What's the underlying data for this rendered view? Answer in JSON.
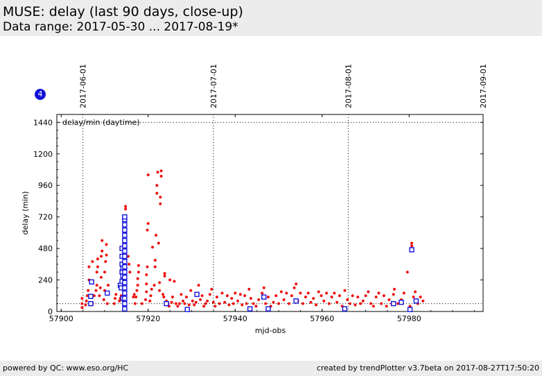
{
  "header": {
    "title": "MUSE: delay (last 90 days, close-up)",
    "subtitle": "Data range: 2017-05-30 ... 2017-08-19*"
  },
  "badge": "4",
  "footer": {
    "left": "powered by QC: www.eso.org/HC",
    "right": "created by trendPlotter v3.7beta on 2017-08-27T17:50:20"
  },
  "colors": {
    "points": "#ee1111",
    "squares": "#1010dd",
    "header_bg": "#ececec"
  },
  "chart_data": {
    "type": "scatter",
    "annotation": "delay/min (daytime)",
    "xlabel": "mjd-obs",
    "ylabel": "delay (min)",
    "xlim": [
      57899,
      57997
    ],
    "ylim": [
      0,
      1500
    ],
    "x_ticks": [
      57900,
      57920,
      57940,
      57960,
      57980
    ],
    "y_ticks": [
      0,
      240,
      480,
      720,
      960,
      1200,
      1440
    ],
    "date_markers": [
      {
        "label": "2017-06-01",
        "x": 57905
      },
      {
        "label": "2017-07-01",
        "x": 57935
      },
      {
        "label": "2017-08-01",
        "x": 57966
      },
      {
        "label": "2017-09-01",
        "x": 57997
      }
    ],
    "grid_dotted_y": [
      1440,
      60
    ],
    "series": [
      {
        "marker": "dot",
        "points": [
          [
            57904.8,
            30
          ],
          [
            57904.8,
            60
          ],
          [
            57904.8,
            100
          ],
          [
            57905.6,
            50
          ],
          [
            57905.8,
            80
          ],
          [
            57906,
            120
          ],
          [
            57906.2,
            160
          ],
          [
            57906.4,
            240
          ],
          [
            57906.4,
            340
          ],
          [
            57907.2,
            60
          ],
          [
            57907.2,
            380
          ],
          [
            57907.6,
            120
          ],
          [
            57908,
            160
          ],
          [
            57908.2,
            200
          ],
          [
            57908.2,
            300
          ],
          [
            57908.4,
            340
          ],
          [
            57908.4,
            400
          ],
          [
            57908.8,
            120
          ],
          [
            57909,
            180
          ],
          [
            57909.2,
            260
          ],
          [
            57909.2,
            420
          ],
          [
            57909.4,
            460
          ],
          [
            57909.4,
            540
          ],
          [
            57909.8,
            90
          ],
          [
            57910,
            160
          ],
          [
            57910,
            300
          ],
          [
            57910.2,
            380
          ],
          [
            57910.4,
            430
          ],
          [
            57910.4,
            510
          ],
          [
            57910.6,
            60
          ],
          [
            57910.8,
            200
          ],
          [
            57912.2,
            60
          ],
          [
            57912.4,
            100
          ],
          [
            57912.6,
            130
          ],
          [
            57913.4,
            80
          ],
          [
            57913.6,
            100
          ],
          [
            57913.8,
            120
          ],
          [
            57914.2,
            90
          ],
          [
            57914.8,
            480
          ],
          [
            57914.8,
            540
          ],
          [
            57914.8,
            600
          ],
          [
            57914.8,
            660
          ],
          [
            57914.8,
            720
          ],
          [
            57914.8,
            780
          ],
          [
            57914.8,
            800
          ],
          [
            57915.4,
            420
          ],
          [
            57915.6,
            360
          ],
          [
            57915.8,
            300
          ],
          [
            57916.6,
            110
          ],
          [
            57916.8,
            130
          ],
          [
            57917,
            60
          ],
          [
            57917.2,
            110
          ],
          [
            57917.4,
            160
          ],
          [
            57917.6,
            200
          ],
          [
            57917.6,
            250
          ],
          [
            57917.8,
            300
          ],
          [
            57917.8,
            350
          ],
          [
            57918.6,
            60
          ],
          [
            57919.4,
            90
          ],
          [
            57919.6,
            150
          ],
          [
            57919.6,
            210
          ],
          [
            57919.6,
            280
          ],
          [
            57919.8,
            340
          ],
          [
            57919.8,
            620
          ],
          [
            57920,
            670
          ],
          [
            57920,
            1040
          ],
          [
            57920.4,
            80
          ],
          [
            57920.6,
            120
          ],
          [
            57920.8,
            170
          ],
          [
            57921,
            490
          ],
          [
            57921.4,
            200
          ],
          [
            57921.6,
            340
          ],
          [
            57921.6,
            390
          ],
          [
            57921.8,
            580
          ],
          [
            57922,
            900
          ],
          [
            57922,
            960
          ],
          [
            57922.2,
            1060
          ],
          [
            57922.4,
            520
          ],
          [
            57922.6,
            160
          ],
          [
            57922.6,
            220
          ],
          [
            57922.8,
            820
          ],
          [
            57922.8,
            870
          ],
          [
            57923,
            1030
          ],
          [
            57923,
            1070
          ],
          [
            57923.4,
            130
          ],
          [
            57923.6,
            110
          ],
          [
            57923.8,
            290
          ],
          [
            57923.8,
            270
          ],
          [
            57924.2,
            80
          ],
          [
            57924.6,
            60
          ],
          [
            57924.8,
            40
          ],
          [
            57925,
            240
          ],
          [
            57925.4,
            70
          ],
          [
            57925.6,
            110
          ],
          [
            57926,
            230
          ],
          [
            57926.4,
            60
          ],
          [
            57926.8,
            40
          ],
          [
            57927.2,
            60
          ],
          [
            57927.6,
            130
          ],
          [
            57928,
            80
          ],
          [
            57928.4,
            60
          ],
          [
            57928.8,
            110
          ],
          [
            57929.4,
            50
          ],
          [
            57929.8,
            160
          ],
          [
            57930.2,
            80
          ],
          [
            57930.6,
            50
          ],
          [
            57931,
            70
          ],
          [
            57931.6,
            200
          ],
          [
            57932,
            90
          ],
          [
            57932.4,
            120
          ],
          [
            57932.8,
            40
          ],
          [
            57933.2,
            60
          ],
          [
            57933.6,
            80
          ],
          [
            57934.2,
            130
          ],
          [
            57934.6,
            170
          ],
          [
            57935,
            70
          ],
          [
            57935.4,
            40
          ],
          [
            57935.8,
            110
          ],
          [
            57936.4,
            60
          ],
          [
            57937,
            140
          ],
          [
            57937.6,
            70
          ],
          [
            57938.2,
            120
          ],
          [
            57938.6,
            50
          ],
          [
            57939.2,
            100
          ],
          [
            57939.6,
            60
          ],
          [
            57940,
            140
          ],
          [
            57940.6,
            80
          ],
          [
            57941.2,
            130
          ],
          [
            57941.6,
            50
          ],
          [
            57942.2,
            120
          ],
          [
            57942.6,
            60
          ],
          [
            57943.2,
            170
          ],
          [
            57943.6,
            100
          ],
          [
            57944.2,
            60
          ],
          [
            57944.8,
            40
          ],
          [
            57945.4,
            90
          ],
          [
            57946.2,
            140
          ],
          [
            57946.6,
            180
          ],
          [
            57947,
            60
          ],
          [
            57947.6,
            110
          ],
          [
            57948.2,
            40
          ],
          [
            57948.8,
            70
          ],
          [
            57949.4,
            120
          ],
          [
            57950,
            60
          ],
          [
            57950.6,
            150
          ],
          [
            57951.2,
            90
          ],
          [
            57951.8,
            140
          ],
          [
            57952.4,
            60
          ],
          [
            57953,
            120
          ],
          [
            57953.6,
            180
          ],
          [
            57954,
            210
          ],
          [
            57954.4,
            80
          ],
          [
            57955,
            140
          ],
          [
            57955.6,
            60
          ],
          [
            57956.2,
            110
          ],
          [
            57956.8,
            140
          ],
          [
            57957.4,
            70
          ],
          [
            57958,
            100
          ],
          [
            57958.6,
            50
          ],
          [
            57959.2,
            150
          ],
          [
            57959.8,
            120
          ],
          [
            57960.4,
            80
          ],
          [
            57961,
            140
          ],
          [
            57961.6,
            60
          ],
          [
            57962.2,
            110
          ],
          [
            57962.8,
            140
          ],
          [
            57963.4,
            70
          ],
          [
            57964,
            120
          ],
          [
            57964.6,
            40
          ],
          [
            57965.2,
            160
          ],
          [
            57965.8,
            90
          ],
          [
            57966.4,
            60
          ],
          [
            57967,
            120
          ],
          [
            57967.6,
            50
          ],
          [
            57968.2,
            110
          ],
          [
            57968.8,
            60
          ],
          [
            57969.4,
            80
          ],
          [
            57970,
            120
          ],
          [
            57970.6,
            150
          ],
          [
            57971.2,
            60
          ],
          [
            57971.8,
            40
          ],
          [
            57972.4,
            110
          ],
          [
            57973,
            140
          ],
          [
            57973.6,
            60
          ],
          [
            57974.2,
            120
          ],
          [
            57974.8,
            40
          ],
          [
            57975.4,
            90
          ],
          [
            57976,
            60
          ],
          [
            57976.4,
            130
          ],
          [
            57976.6,
            170
          ],
          [
            57977.4,
            60
          ],
          [
            57978.2,
            90
          ],
          [
            57978.8,
            140
          ],
          [
            57979.6,
            300
          ],
          [
            57980.2,
            40
          ],
          [
            57980.6,
            500
          ],
          [
            57980.6,
            520
          ],
          [
            57981,
            110
          ],
          [
            57981.4,
            150
          ],
          [
            57982,
            60
          ],
          [
            57982.6,
            110
          ],
          [
            57983.2,
            80
          ]
        ]
      },
      {
        "marker": "square",
        "points": [
          [
            57906.8,
            60
          ],
          [
            57906.8,
            115
          ],
          [
            57907,
            225
          ],
          [
            57910.6,
            140
          ],
          [
            57913.6,
            200
          ],
          [
            57913.8,
            180
          ],
          [
            57914,
            230
          ],
          [
            57914,
            300
          ],
          [
            57914,
            360
          ],
          [
            57914,
            420
          ],
          [
            57914,
            480
          ],
          [
            57914.2,
            100
          ],
          [
            57914.2,
            270
          ],
          [
            57914.2,
            330
          ],
          [
            57914.6,
            20
          ],
          [
            57914.6,
            60
          ],
          [
            57914.6,
            100
          ],
          [
            57914.6,
            140
          ],
          [
            57914.6,
            180
          ],
          [
            57914.6,
            220
          ],
          [
            57914.6,
            260
          ],
          [
            57914.6,
            300
          ],
          [
            57914.6,
            340
          ],
          [
            57914.6,
            380
          ],
          [
            57914.6,
            420
          ],
          [
            57914.6,
            460
          ],
          [
            57914.6,
            500
          ],
          [
            57914.6,
            540
          ],
          [
            57914.6,
            580
          ],
          [
            57914.6,
            620
          ],
          [
            57914.6,
            660
          ],
          [
            57914.6,
            700
          ],
          [
            57914.6,
            720
          ],
          [
            57924.2,
            60
          ],
          [
            57929,
            15
          ],
          [
            57931.2,
            130
          ],
          [
            57943.4,
            20
          ],
          [
            57946.6,
            110
          ],
          [
            57947.6,
            20
          ],
          [
            57954,
            80
          ],
          [
            57965.2,
            20
          ],
          [
            57976.4,
            60
          ],
          [
            57978.2,
            70
          ],
          [
            57980.2,
            15
          ],
          [
            57980.6,
            470
          ],
          [
            57981.6,
            80
          ]
        ]
      }
    ]
  }
}
